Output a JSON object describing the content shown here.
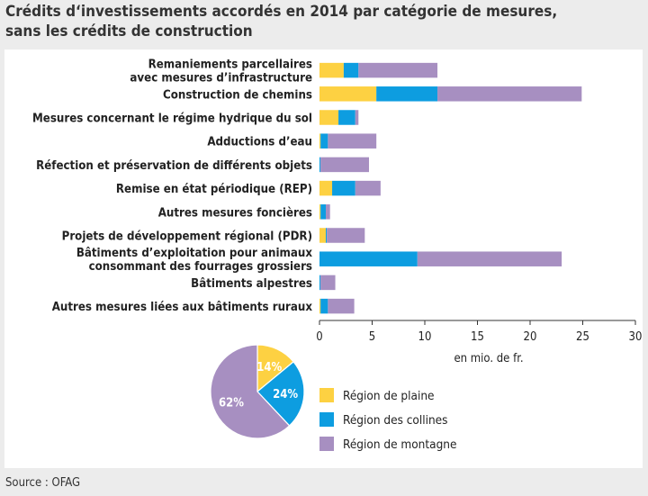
{
  "title_line1": "Crédits d‘investissements accordés en 2014 par catégorie de mesures,",
  "title_line2": "sans les crédits de construction",
  "source": "Source : OFAG",
  "chart_data": [
    {
      "type": "bar",
      "orientation": "horizontal",
      "stacked": true,
      "categories": [
        [
          "Remaniements parcellaires",
          "avec mesures d’infrastructure"
        ],
        [
          "Construction de chemins"
        ],
        [
          "Mesures concernant le régime hydrique du sol"
        ],
        [
          "Adductions d’eau"
        ],
        [
          "Réfection et préservation de différents objets"
        ],
        [
          "Remise en état périodique (REP)"
        ],
        [
          "Autres mesures foncières"
        ],
        [
          "Projets de développement régional (PDR)"
        ],
        [
          "Bâtiments d’exploitation pour animaux",
          "consommant des fourrages grossiers"
        ],
        [
          "Bâtiments alpestres"
        ],
        [
          "Autres mesures liées aux bâtiments ruraux"
        ]
      ],
      "series": [
        {
          "name": "Région de plaine",
          "color": "#fdd142",
          "values": [
            2.3,
            5.4,
            1.8,
            0.1,
            0.0,
            1.2,
            0.1,
            0.6,
            0.0,
            0.0,
            0.1
          ]
        },
        {
          "name": "Région des collines",
          "color": "#0d9de0",
          "values": [
            1.4,
            5.8,
            1.6,
            0.7,
            0.1,
            2.2,
            0.5,
            0.1,
            9.3,
            0.1,
            0.7
          ]
        },
        {
          "name": "Région de montagne",
          "color": "#a78fc1",
          "values": [
            7.5,
            13.7,
            0.3,
            4.6,
            4.6,
            2.4,
            0.4,
            3.6,
            13.7,
            1.4,
            2.5
          ]
        }
      ],
      "xlim": [
        0,
        30
      ],
      "xticks": [
        0,
        5,
        10,
        15,
        20,
        25,
        30
      ],
      "xlabel": "en mio. de fr.",
      "grid": false
    },
    {
      "type": "pie",
      "slices": [
        {
          "name": "Région de plaine",
          "value": 14,
          "label": "14%",
          "color": "#fdd142"
        },
        {
          "name": "Région des collines",
          "value": 24,
          "label": "24%",
          "color": "#0d9de0"
        },
        {
          "name": "Région de montagne",
          "value": 62,
          "label": "62%",
          "color": "#a78fc1"
        }
      ]
    }
  ],
  "legend": [
    {
      "label": "Région de plaine",
      "color": "#fdd142"
    },
    {
      "label": "Région des collines",
      "color": "#0d9de0"
    },
    {
      "label": "Région de montagne",
      "color": "#a78fc1"
    }
  ]
}
